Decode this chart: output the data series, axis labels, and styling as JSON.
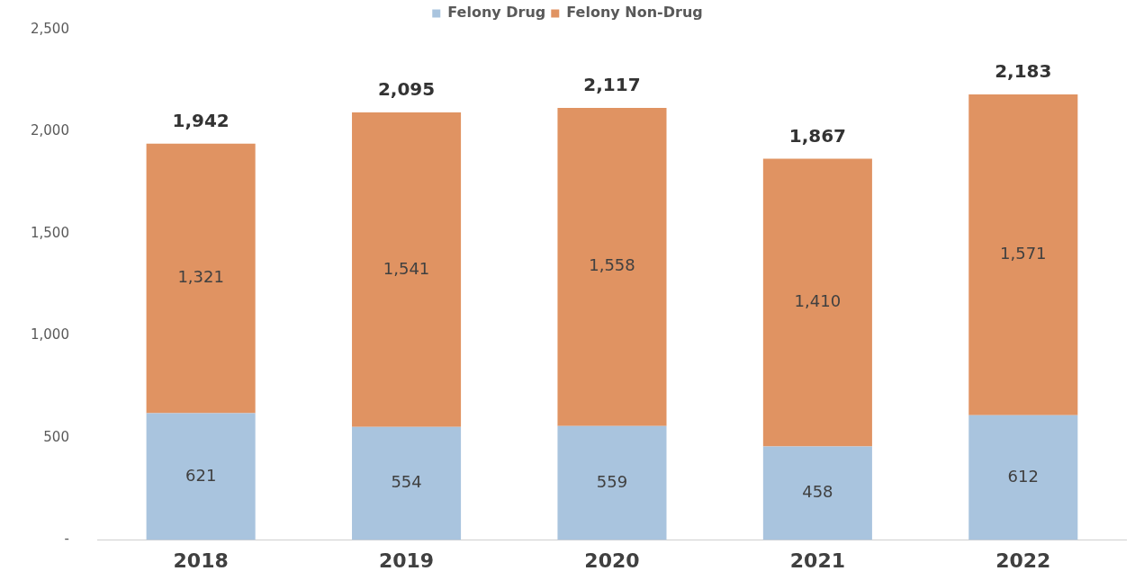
{
  "chart_data": {
    "type": "bar",
    "stacked": true,
    "categories": [
      "2018",
      "2019",
      "2020",
      "2021",
      "2022"
    ],
    "series": [
      {
        "name": "Felony Drug",
        "color": "#a9c4de",
        "values": [
          621,
          554,
          559,
          458,
          612
        ],
        "value_labels": [
          "621",
          "554",
          "559",
          "458",
          "612"
        ]
      },
      {
        "name": "Felony Non-Drug",
        "color": "#e09362",
        "values": [
          1321,
          1541,
          1558,
          1410,
          1571
        ],
        "value_labels": [
          "1,321",
          "1,541",
          "1,558",
          "1,410",
          "1,571"
        ]
      }
    ],
    "ylim": [
      0,
      2500
    ],
    "yticks": [
      {
        "value": 0,
        "label": "-"
      },
      500,
      {
        "value": 1000,
        "label": "1,000"
      },
      {
        "value": 1500,
        "label": "1,500"
      },
      {
        "value": 2000,
        "label": "2,000"
      },
      {
        "value": 2500,
        "label": "2,500"
      }
    ],
    "totals": [
      "1,942",
      "2,095",
      "2,117",
      "1,867",
      "2,183"
    ],
    "grid": false,
    "legend": "top"
  }
}
